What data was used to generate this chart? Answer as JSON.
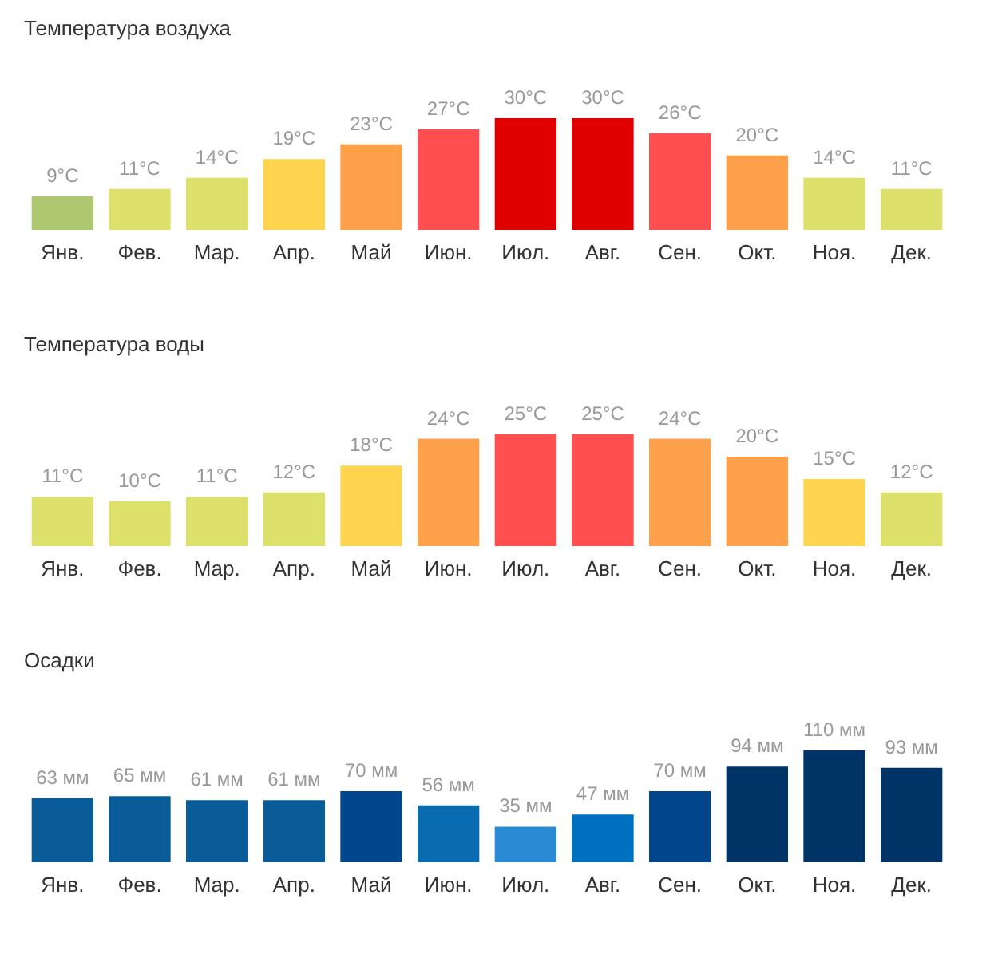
{
  "chart_data": [
    {
      "type": "bar",
      "title": "Температура воздуха",
      "categories": [
        "Янв.",
        "Фев.",
        "Мар.",
        "Апр.",
        "Май",
        "Июн.",
        "Июл.",
        "Авг.",
        "Сен.",
        "Окт.",
        "Ноя.",
        "Дек."
      ],
      "values": [
        9,
        11,
        14,
        19,
        23,
        27,
        30,
        30,
        26,
        20,
        14,
        11
      ],
      "value_labels": [
        "9°C",
        "11°C",
        "14°C",
        "19°C",
        "23°C",
        "27°C",
        "30°C",
        "30°C",
        "26°C",
        "20°C",
        "14°C",
        "11°C"
      ],
      "colors": [
        "#adc86e",
        "#dde06a",
        "#dde06a",
        "#ffd54f",
        "#ffa04b",
        "#ff4f4f",
        "#e00000",
        "#e00000",
        "#ff4f4f",
        "#ffa04b",
        "#dde06a",
        "#dde06a"
      ]
    },
    {
      "type": "bar",
      "title": "Температура воды",
      "categories": [
        "Янв.",
        "Фев.",
        "Мар.",
        "Апр.",
        "Май",
        "Июн.",
        "Июл.",
        "Авг.",
        "Сен.",
        "Окт.",
        "Ноя.",
        "Дек."
      ],
      "values": [
        11,
        10,
        11,
        12,
        18,
        24,
        25,
        25,
        24,
        20,
        15,
        12
      ],
      "value_labels": [
        "11°C",
        "10°C",
        "11°C",
        "12°C",
        "18°C",
        "24°C",
        "25°C",
        "25°C",
        "24°C",
        "20°C",
        "15°C",
        "12°C"
      ],
      "colors": [
        "#dde06a",
        "#dde06a",
        "#dde06a",
        "#dde06a",
        "#ffd54f",
        "#ffa04b",
        "#ff4f4f",
        "#ff4f4f",
        "#ffa04b",
        "#ffa04b",
        "#ffd54f",
        "#dde06a"
      ]
    },
    {
      "type": "bar",
      "title": "Осадки",
      "categories": [
        "Янв.",
        "Фев.",
        "Мар.",
        "Апр.",
        "Май",
        "Июн.",
        "Июл.",
        "Авг.",
        "Сен.",
        "Окт.",
        "Ноя.",
        "Дек."
      ],
      "values": [
        63,
        65,
        61,
        61,
        70,
        56,
        35,
        47,
        70,
        94,
        110,
        93
      ],
      "value_labels": [
        "63 мм",
        "65 мм",
        "61 мм",
        "61 мм",
        "70 мм",
        "56 мм",
        "35 мм",
        "47 мм",
        "70 мм",
        "94 мм",
        "110 мм",
        "93 мм"
      ],
      "colors": [
        "#0a5c99",
        "#0a5c99",
        "#0a5c99",
        "#0a5c99",
        "#00468c",
        "#0a6cb0",
        "#2a8ad4",
        "#0070c0",
        "#00468c",
        "#003366",
        "#003366",
        "#003366"
      ]
    }
  ]
}
